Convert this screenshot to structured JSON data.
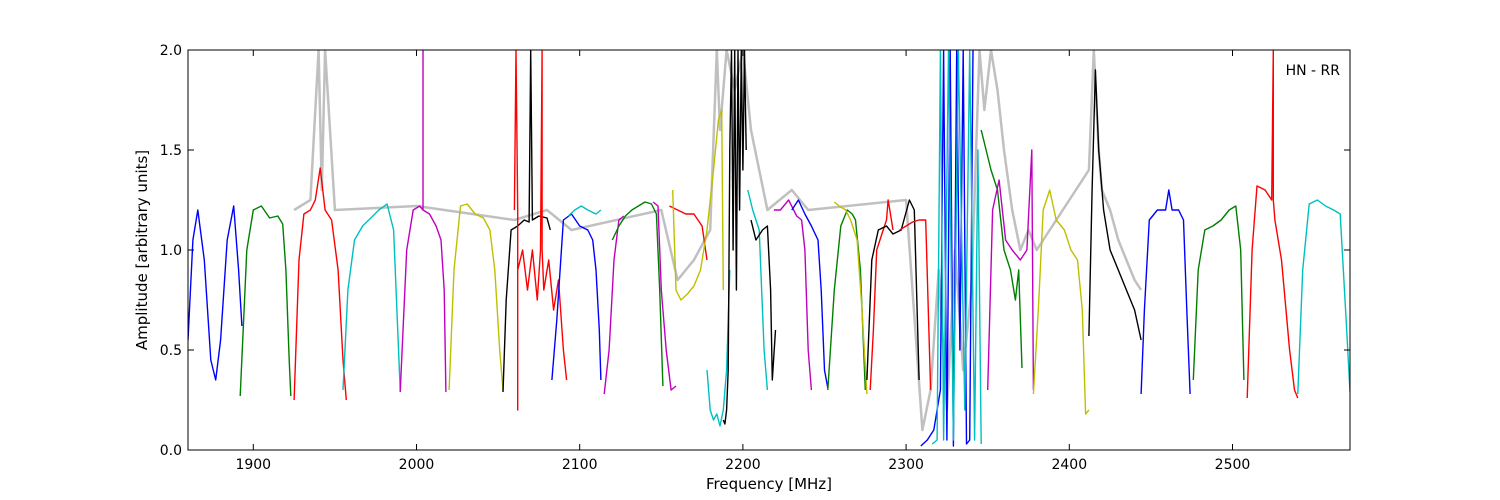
{
  "chart_data": {
    "type": "line",
    "xlabel": "Frequency [MHz]",
    "ylabel": "Amplitude [arbitrary units]",
    "annotation": "HN - RR",
    "xlim": [
      1860,
      2572
    ],
    "ylim": [
      0.0,
      2.0
    ],
    "xticks": [
      1900,
      2000,
      2100,
      2200,
      2300,
      2400,
      2500
    ],
    "xtick_labels": [
      "1900",
      "2000",
      "2100",
      "2200",
      "2300",
      "2400",
      "2500"
    ],
    "yticks": [
      0.0,
      0.5,
      1.0,
      1.5,
      2.0
    ],
    "ytick_labels": [
      "0.0",
      "0.5",
      "1.0",
      "1.5",
      "2.0"
    ],
    "grid": false,
    "legend": "none",
    "background_trace_color": "#c0c0c0",
    "series": [
      {
        "color": "#0000ff",
        "x": [
          1860,
          1863,
          1866,
          1870,
          1874,
          1877,
          1880,
          1884,
          1888,
          1891,
          1893
        ],
        "y": [
          0.55,
          1.05,
          1.2,
          0.95,
          0.45,
          0.35,
          0.55,
          1.05,
          1.22,
          0.9,
          0.62
        ]
      },
      {
        "color": "#007f00",
        "x": [
          1892,
          1896,
          1900,
          1905,
          1910,
          1915,
          1918,
          1920,
          1922,
          1923
        ],
        "y": [
          0.27,
          1.0,
          1.2,
          1.22,
          1.16,
          1.17,
          1.13,
          0.9,
          0.45,
          0.27
        ]
      },
      {
        "color": "#ff0000",
        "x": [
          1925,
          1928,
          1931,
          1935,
          1938,
          1941,
          1944,
          1948,
          1952,
          1955,
          1957
        ],
        "y": [
          0.25,
          0.95,
          1.18,
          1.2,
          1.25,
          1.41,
          1.2,
          1.15,
          0.9,
          0.45,
          0.25
        ]
      },
      {
        "color": "#00bfbf",
        "x": [
          1955,
          1958,
          1962,
          1967,
          1972,
          1977,
          1982,
          1986,
          1988,
          1990
        ],
        "y": [
          0.3,
          0.8,
          1.05,
          1.12,
          1.16,
          1.2,
          1.23,
          1.1,
          0.7,
          0.3
        ]
      },
      {
        "color": "#bf00bf",
        "x": [
          1990,
          1994,
          1998,
          2002,
          2004,
          2004,
          2004,
          2008,
          2012,
          2015,
          2017,
          2018
        ],
        "y": [
          0.29,
          1.0,
          1.2,
          1.22,
          1.2,
          2.0,
          1.2,
          1.18,
          1.12,
          1.05,
          0.8,
          0.29
        ]
      },
      {
        "color": "#bfbf00",
        "x": [
          2020,
          2023,
          2027,
          2031,
          2036,
          2041,
          2045,
          2048,
          2051,
          2053
        ],
        "y": [
          0.3,
          0.9,
          1.22,
          1.23,
          1.18,
          1.16,
          1.1,
          0.9,
          0.5,
          0.3
        ]
      },
      {
        "color": "#000000",
        "x": [
          2053,
          2055,
          2058,
          2062,
          2066,
          2069,
          2070,
          2071,
          2075,
          2080,
          2082
        ],
        "y": [
          0.29,
          0.75,
          1.1,
          1.12,
          1.15,
          1.14,
          2.0,
          1.15,
          1.17,
          1.16,
          1.1
        ]
      },
      {
        "color": "#ff0000",
        "x": [
          2060,
          2061,
          2062,
          2062,
          2062,
          2065,
          2068,
          2071,
          2074,
          2076,
          2077,
          2077,
          2078,
          2081,
          2084,
          2087,
          2090,
          2092
        ],
        "y": [
          1.2,
          2.0,
          1.2,
          0.2,
          0.9,
          1.0,
          0.8,
          1.0,
          0.75,
          1.0,
          2.0,
          1.0,
          0.8,
          0.95,
          0.7,
          0.85,
          0.5,
          0.35
        ]
      },
      {
        "color": "#0000ff",
        "x": [
          2083,
          2086,
          2090,
          2095,
          2100,
          2105,
          2108,
          2110,
          2112,
          2113
        ],
        "y": [
          0.35,
          0.65,
          1.15,
          1.18,
          1.12,
          1.1,
          1.05,
          0.9,
          0.6,
          0.35
        ]
      },
      {
        "color": "#00bfbf",
        "x": [
          2093,
          2097,
          2101,
          2105,
          2110,
          2113
        ],
        "y": [
          1.17,
          1.2,
          1.22,
          1.2,
          1.18,
          1.2
        ]
      },
      {
        "color": "#bf00bf",
        "x": [
          2115,
          2118,
          2121,
          2124,
          2127
        ],
        "y": [
          0.28,
          0.5,
          0.95,
          1.15,
          1.17
        ]
      },
      {
        "color": "#007f00",
        "x": [
          2120,
          2124,
          2128,
          2132,
          2136,
          2140,
          2144,
          2147,
          2149,
          2151
        ],
        "y": [
          1.05,
          1.12,
          1.17,
          1.2,
          1.22,
          1.24,
          1.23,
          1.18,
          0.8,
          0.32
        ]
      },
      {
        "color": "#bf00bf",
        "x": [
          2145,
          2148,
          2150,
          2153,
          2156,
          2159
        ],
        "y": [
          1.24,
          1.22,
          0.8,
          0.5,
          0.3,
          0.32
        ]
      },
      {
        "color": "#ff0000",
        "x": [
          2155,
          2160,
          2165,
          2170,
          2175,
          2178
        ],
        "y": [
          1.22,
          1.2,
          1.18,
          1.18,
          1.12,
          0.95
        ]
      },
      {
        "color": "#bfbf00",
        "x": [
          2157,
          2159,
          2162,
          2166,
          2170,
          2174,
          2178,
          2182,
          2185,
          2187,
          2188
        ],
        "y": [
          1.3,
          0.8,
          0.75,
          0.78,
          0.82,
          0.9,
          1.1,
          1.4,
          1.65,
          1.7,
          0.8
        ]
      },
      {
        "color": "#00bfbf",
        "x": [
          2178,
          2180,
          2182,
          2184,
          2186,
          2188,
          2190,
          2192
        ],
        "y": [
          0.4,
          0.2,
          0.15,
          0.18,
          0.12,
          0.2,
          0.4,
          0.9
        ]
      },
      {
        "color": "#000000",
        "x": [
          2188,
          2189,
          2190,
          2191,
          2192,
          2193,
          2194,
          2195,
          2196,
          2197,
          2198,
          2199,
          2200,
          2201,
          2202
        ],
        "y": [
          0.15,
          0.13,
          0.2,
          0.4,
          1.5,
          2.0,
          1.0,
          2.0,
          0.8,
          2.0,
          1.2,
          2.0,
          1.4,
          2.0,
          1.5
        ]
      },
      {
        "color": "#00bfbf",
        "x": [
          2203,
          2206,
          2210,
          2213,
          2215
        ],
        "y": [
          1.3,
          1.2,
          1.1,
          0.5,
          0.3
        ]
      },
      {
        "color": "#000000",
        "x": [
          2205,
          2208,
          2212,
          2215,
          2217,
          2218,
          2220
        ],
        "y": [
          1.15,
          1.05,
          1.1,
          1.12,
          0.8,
          0.35,
          0.6
        ]
      },
      {
        "color": "#bf00bf",
        "x": [
          2219,
          2223,
          2228,
          2233,
          2236,
          2238,
          2240,
          2242
        ],
        "y": [
          1.2,
          1.2,
          1.25,
          1.17,
          1.15,
          1.0,
          0.5,
          0.3
        ]
      },
      {
        "color": "#0000ff",
        "x": [
          2230,
          2234,
          2238,
          2242,
          2246,
          2248,
          2250,
          2252
        ],
        "y": [
          1.2,
          1.25,
          1.18,
          1.12,
          1.05,
          0.8,
          0.4,
          0.31
        ]
      },
      {
        "color": "#007f00",
        "x": [
          2252,
          2256,
          2260,
          2264,
          2267,
          2269,
          2272,
          2275
        ],
        "y": [
          0.3,
          0.8,
          1.12,
          1.2,
          1.18,
          1.15,
          0.9,
          0.3
        ]
      },
      {
        "color": "#bfbf00",
        "x": [
          2256,
          2259,
          2263,
          2266,
          2270,
          2273,
          2276
        ],
        "y": [
          1.24,
          1.22,
          1.2,
          1.15,
          1.05,
          0.7,
          0.28
        ]
      },
      {
        "color": "#ff0000",
        "x": [
          2278,
          2280,
          2282,
          2286,
          2288,
          2289,
          2290,
          2292
        ],
        "y": [
          0.3,
          0.6,
          1.0,
          1.1,
          1.15,
          1.25,
          1.2,
          1.1
        ]
      },
      {
        "color": "#000000",
        "x": [
          2276,
          2279,
          2283,
          2288,
          2292,
          2297,
          2302,
          2305,
          2308
        ],
        "y": [
          0.35,
          0.95,
          1.1,
          1.12,
          1.08,
          1.1,
          1.25,
          1.2,
          0.35
        ]
      },
      {
        "color": "#ff0000",
        "x": [
          2296,
          2300,
          2304,
          2308,
          2312,
          2315
        ],
        "y": [
          1.1,
          1.12,
          1.14,
          1.15,
          1.15,
          0.3
        ]
      },
      {
        "color": "#0000ff",
        "x": [
          2309,
          2313,
          2317,
          2321,
          2323,
          2325,
          2327,
          2329,
          2331,
          2333,
          2335,
          2337,
          2339,
          2341
        ],
        "y": [
          0.02,
          0.05,
          0.1,
          0.3,
          2.0,
          0.05,
          2.0,
          0.02,
          2.0,
          0.5,
          2.0,
          0.03,
          0.05,
          2.0
        ]
      },
      {
        "color": "#00bfbf",
        "x": [
          2316,
          2319,
          2321,
          2323,
          2326,
          2329,
          2332,
          2336,
          2339,
          2342,
          2344,
          2346
        ],
        "y": [
          0.03,
          0.05,
          2.0,
          0.05,
          2.0,
          0.05,
          2.0,
          0.2,
          2.0,
          0.05,
          1.5,
          0.03
        ]
      },
      {
        "color": "#007f00",
        "x": [
          2346,
          2349,
          2352,
          2356,
          2360,
          2364,
          2367,
          2369,
          2371
        ],
        "y": [
          1.6,
          1.5,
          1.4,
          1.3,
          1.0,
          0.9,
          0.75,
          0.9,
          0.41
        ]
      },
      {
        "color": "#bf00bf",
        "x": [
          2350,
          2353,
          2357,
          2361,
          2365,
          2370,
          2374,
          2377,
          2378
        ],
        "y": [
          0.3,
          1.2,
          1.35,
          1.05,
          1.0,
          0.95,
          1.0,
          1.5,
          0.3
        ]
      },
      {
        "color": "#bfbf00",
        "x": [
          2378,
          2381,
          2384,
          2388,
          2392,
          2397,
          2401,
          2405,
          2408,
          2410,
          2412
        ],
        "y": [
          0.28,
          0.7,
          1.2,
          1.3,
          1.15,
          1.1,
          1.0,
          0.95,
          0.7,
          0.18,
          0.2
        ]
      },
      {
        "color": "#000000",
        "x": [
          2412,
          2414,
          2416,
          2418,
          2421,
          2425,
          2430,
          2435,
          2440,
          2444
        ],
        "y": [
          0.57,
          1.3,
          1.9,
          1.5,
          1.2,
          1.0,
          0.9,
          0.8,
          0.7,
          0.55
        ]
      },
      {
        "color": "#0000ff",
        "x": [
          2444,
          2446,
          2449,
          2454,
          2459,
          2461,
          2463,
          2467,
          2470,
          2472,
          2474
        ],
        "y": [
          0.28,
          0.7,
          1.15,
          1.2,
          1.2,
          1.3,
          1.2,
          1.2,
          1.15,
          0.7,
          0.28
        ]
      },
      {
        "color": "#007f00",
        "x": [
          2476,
          2479,
          2483,
          2488,
          2493,
          2498,
          2502,
          2505,
          2507
        ],
        "y": [
          0.35,
          0.9,
          1.1,
          1.12,
          1.15,
          1.2,
          1.22,
          1.0,
          0.35
        ]
      },
      {
        "color": "#ff0000",
        "x": [
          2509,
          2512,
          2515,
          2520,
          2524,
          2525,
          2525,
          2526,
          2530,
          2535,
          2538,
          2540
        ],
        "y": [
          0.26,
          1.0,
          1.32,
          1.3,
          1.25,
          2.0,
          1.25,
          1.15,
          0.95,
          0.5,
          0.3,
          0.26
        ]
      },
      {
        "color": "#00bfbf",
        "x": [
          2540,
          2543,
          2547,
          2552,
          2557,
          2562,
          2566,
          2570,
          2572
        ],
        "y": [
          0.28,
          0.9,
          1.23,
          1.25,
          1.22,
          1.2,
          1.18,
          0.6,
          0.29
        ]
      }
    ],
    "background_trace": {
      "x": [
        1925,
        1935,
        1940,
        1942,
        1944,
        1950,
        2000,
        2060,
        2080,
        2095,
        2150,
        2160,
        2170,
        2180,
        2184,
        2186,
        2190,
        2195,
        2200,
        2205,
        2210,
        2215,
        2230,
        2240,
        2300,
        2310,
        2315,
        2320,
        2325,
        2330,
        2335,
        2340,
        2345,
        2348,
        2352,
        2356,
        2360,
        2365,
        2370,
        2375,
        2380,
        2412,
        2415,
        2418,
        2420,
        2425,
        2430,
        2435,
        2440,
        2444
      ],
      "y": [
        1.2,
        1.25,
        2.0,
        1.3,
        2.0,
        1.2,
        1.22,
        1.15,
        1.2,
        1.1,
        1.2,
        0.85,
        0.95,
        1.1,
        2.0,
        1.6,
        2.0,
        1.8,
        2.0,
        1.6,
        1.4,
        1.2,
        1.3,
        1.2,
        1.25,
        0.1,
        0.3,
        0.9,
        0.2,
        1.0,
        0.4,
        0.8,
        2.0,
        1.7,
        2.0,
        1.8,
        1.5,
        1.2,
        1.0,
        1.1,
        1.0,
        1.4,
        2.0,
        1.5,
        1.3,
        1.2,
        1.05,
        0.95,
        0.85,
        0.8
      ]
    }
  }
}
